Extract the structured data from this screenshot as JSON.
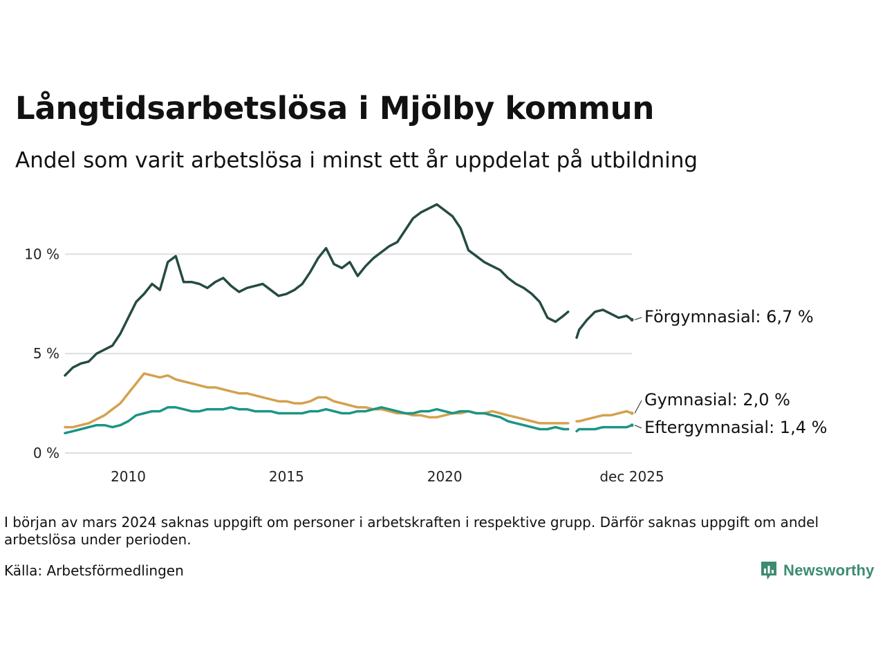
{
  "colors": {
    "primary": "#244b44",
    "gymnasial": "#d4a14e",
    "eftergymnasial": "#1a9585",
    "grid": "#dddddd",
    "brand": "#3d8c6f"
  },
  "footnote": "I början av mars 2024 saknas uppgift om personer i arbetskraften i respektive grupp. Därför saknas uppgift om andel arbetslösa under perioden.",
  "source": "Källa: Arbetsförmedlingen",
  "brand": {
    "name": "Newsworthy",
    "icon": "newsworthy-logo-icon"
  },
  "chart_data": {
    "type": "line",
    "title": "Långtidsarbetslösa i Mjölby kommun",
    "subtitle": "Andel som varit arbetslösa i minst ett år uppdelat på utbildning",
    "xlabel": "",
    "ylabel": "",
    "xlim": [
      2008.0,
      2025.917
    ],
    "ylim": [
      0,
      12.9
    ],
    "x_ticks": [
      {
        "value": 2010,
        "label": "2010"
      },
      {
        "value": 2015,
        "label": "2015"
      },
      {
        "value": 2020,
        "label": "2020"
      },
      {
        "value": 2025.917,
        "label": "dec 2025"
      }
    ],
    "y_ticks": [
      {
        "value": 0,
        "label": "0 %"
      },
      {
        "value": 5,
        "label": "5 %"
      },
      {
        "value": 10,
        "label": "10 %"
      }
    ],
    "grid": true,
    "gap_note": "Data missing from about 2023.9 to 2024.17",
    "series": [
      {
        "name": "Förgymnasial",
        "end_label": "Förgymnasial: 6,7 %",
        "color": "#244b44",
        "x": [
          2008.0,
          2008.25,
          2008.5,
          2008.75,
          2009.0,
          2009.25,
          2009.5,
          2009.75,
          2010.0,
          2010.25,
          2010.5,
          2010.75,
          2011.0,
          2011.25,
          2011.5,
          2011.75,
          2012.0,
          2012.25,
          2012.5,
          2012.75,
          2013.0,
          2013.25,
          2013.5,
          2013.75,
          2014.0,
          2014.25,
          2014.5,
          2014.75,
          2015.0,
          2015.25,
          2015.5,
          2015.75,
          2016.0,
          2016.25,
          2016.5,
          2016.75,
          2017.0,
          2017.25,
          2017.5,
          2017.75,
          2018.0,
          2018.25,
          2018.5,
          2018.75,
          2019.0,
          2019.25,
          2019.5,
          2019.75,
          2020.0,
          2020.25,
          2020.5,
          2020.75,
          2021.0,
          2021.25,
          2021.5,
          2021.75,
          2022.0,
          2022.25,
          2022.5,
          2022.75,
          2023.0,
          2023.25,
          2023.5,
          2023.75,
          2023.9,
          null,
          2024.17,
          2024.25,
          2024.5,
          2024.75,
          2025.0,
          2025.25,
          2025.5,
          2025.75,
          2025.917
        ],
        "values": [
          3.9,
          4.3,
          4.5,
          4.6,
          5.0,
          5.2,
          5.4,
          6.0,
          6.8,
          7.6,
          8.0,
          8.5,
          8.2,
          9.6,
          9.9,
          8.6,
          8.6,
          8.5,
          8.3,
          8.6,
          8.8,
          8.4,
          8.1,
          8.3,
          8.4,
          8.5,
          8.2,
          7.9,
          8.0,
          8.2,
          8.5,
          9.1,
          9.8,
          10.3,
          9.5,
          9.3,
          9.6,
          8.9,
          9.4,
          9.8,
          10.1,
          10.4,
          10.6,
          11.2,
          11.8,
          12.1,
          12.3,
          12.5,
          12.2,
          11.9,
          11.3,
          10.2,
          9.9,
          9.6,
          9.4,
          9.2,
          8.8,
          8.5,
          8.3,
          8.0,
          7.6,
          6.8,
          6.6,
          6.9,
          7.1,
          null,
          5.8,
          6.2,
          6.7,
          7.1,
          7.2,
          7.0,
          6.8,
          6.9,
          6.7
        ]
      },
      {
        "name": "Gymnasial",
        "end_label": "Gymnasial: 2,0 %",
        "color": "#d4a14e",
        "x": [
          2008.0,
          2008.25,
          2008.5,
          2008.75,
          2009.0,
          2009.25,
          2009.5,
          2009.75,
          2010.0,
          2010.25,
          2010.5,
          2010.75,
          2011.0,
          2011.25,
          2011.5,
          2011.75,
          2012.0,
          2012.25,
          2012.5,
          2012.75,
          2013.0,
          2013.25,
          2013.5,
          2013.75,
          2014.0,
          2014.25,
          2014.5,
          2014.75,
          2015.0,
          2015.25,
          2015.5,
          2015.75,
          2016.0,
          2016.25,
          2016.5,
          2016.75,
          2017.0,
          2017.25,
          2017.5,
          2017.75,
          2018.0,
          2018.25,
          2018.5,
          2018.75,
          2019.0,
          2019.25,
          2019.5,
          2019.75,
          2020.0,
          2020.25,
          2020.5,
          2020.75,
          2021.0,
          2021.25,
          2021.5,
          2021.75,
          2022.0,
          2022.25,
          2022.5,
          2022.75,
          2023.0,
          2023.25,
          2023.5,
          2023.75,
          2023.9,
          null,
          2024.17,
          2024.25,
          2024.5,
          2024.75,
          2025.0,
          2025.25,
          2025.5,
          2025.75,
          2025.917
        ],
        "values": [
          1.3,
          1.3,
          1.4,
          1.5,
          1.7,
          1.9,
          2.2,
          2.5,
          3.0,
          3.5,
          4.0,
          3.9,
          3.8,
          3.9,
          3.7,
          3.6,
          3.5,
          3.4,
          3.3,
          3.3,
          3.2,
          3.1,
          3.0,
          3.0,
          2.9,
          2.8,
          2.7,
          2.6,
          2.6,
          2.5,
          2.5,
          2.6,
          2.8,
          2.8,
          2.6,
          2.5,
          2.4,
          2.3,
          2.3,
          2.2,
          2.2,
          2.1,
          2.0,
          2.0,
          1.9,
          1.9,
          1.8,
          1.8,
          1.9,
          2.0,
          2.0,
          2.1,
          2.0,
          2.0,
          2.1,
          2.0,
          1.9,
          1.8,
          1.7,
          1.6,
          1.5,
          1.5,
          1.5,
          1.5,
          1.5,
          null,
          1.6,
          1.6,
          1.7,
          1.8,
          1.9,
          1.9,
          2.0,
          2.1,
          2.0
        ]
      },
      {
        "name": "Eftergymnasial",
        "end_label": "Eftergymnasial: 1,4 %",
        "color": "#1a9585",
        "x": [
          2008.0,
          2008.25,
          2008.5,
          2008.75,
          2009.0,
          2009.25,
          2009.5,
          2009.75,
          2010.0,
          2010.25,
          2010.5,
          2010.75,
          2011.0,
          2011.25,
          2011.5,
          2011.75,
          2012.0,
          2012.25,
          2012.5,
          2012.75,
          2013.0,
          2013.25,
          2013.5,
          2013.75,
          2014.0,
          2014.25,
          2014.5,
          2014.75,
          2015.0,
          2015.25,
          2015.5,
          2015.75,
          2016.0,
          2016.25,
          2016.5,
          2016.75,
          2017.0,
          2017.25,
          2017.5,
          2017.75,
          2018.0,
          2018.25,
          2018.5,
          2018.75,
          2019.0,
          2019.25,
          2019.5,
          2019.75,
          2020.0,
          2020.25,
          2020.5,
          2020.75,
          2021.0,
          2021.25,
          2021.5,
          2021.75,
          2022.0,
          2022.25,
          2022.5,
          2022.75,
          2023.0,
          2023.25,
          2023.5,
          2023.75,
          2023.9,
          null,
          2024.17,
          2024.25,
          2024.5,
          2024.75,
          2025.0,
          2025.25,
          2025.5,
          2025.75,
          2025.917
        ],
        "values": [
          1.0,
          1.1,
          1.2,
          1.3,
          1.4,
          1.4,
          1.3,
          1.4,
          1.6,
          1.9,
          2.0,
          2.1,
          2.1,
          2.3,
          2.3,
          2.2,
          2.1,
          2.1,
          2.2,
          2.2,
          2.2,
          2.3,
          2.2,
          2.2,
          2.1,
          2.1,
          2.1,
          2.0,
          2.0,
          2.0,
          2.0,
          2.1,
          2.1,
          2.2,
          2.1,
          2.0,
          2.0,
          2.1,
          2.1,
          2.2,
          2.3,
          2.2,
          2.1,
          2.0,
          2.0,
          2.1,
          2.1,
          2.2,
          2.1,
          2.0,
          2.1,
          2.1,
          2.0,
          2.0,
          1.9,
          1.8,
          1.6,
          1.5,
          1.4,
          1.3,
          1.2,
          1.2,
          1.3,
          1.2,
          1.2,
          null,
          1.1,
          1.2,
          1.2,
          1.2,
          1.3,
          1.3,
          1.3,
          1.3,
          1.4
        ]
      }
    ]
  }
}
